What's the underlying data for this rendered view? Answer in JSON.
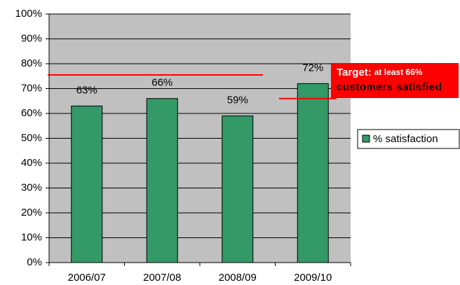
{
  "chart_data": {
    "type": "bar",
    "categories": [
      "2006/07",
      "2007/08",
      "2008/09",
      "2009/10"
    ],
    "series": [
      {
        "name": "% satisfaction",
        "color": "#339966",
        "values": [
          63,
          66,
          59,
          72
        ],
        "value_labels": [
          "63%",
          "66%",
          "59%",
          "72%"
        ]
      }
    ],
    "ylim": [
      0,
      100
    ],
    "yticks": [
      {
        "value": 0,
        "label": "0%"
      },
      {
        "value": 10,
        "label": "10%"
      },
      {
        "value": 20,
        "label": "20%"
      },
      {
        "value": 30,
        "label": "30%"
      },
      {
        "value": 40,
        "label": "40%"
      },
      {
        "value": 50,
        "label": "50%"
      },
      {
        "value": 60,
        "label": "60%"
      },
      {
        "value": 70,
        "label": "70%"
      },
      {
        "value": 80,
        "label": "80%"
      },
      {
        "value": 90,
        "label": "90%"
      },
      {
        "value": 100,
        "label": "100%"
      }
    ],
    "grid": true,
    "legend": "right",
    "reference_lines": [
      75.5,
      66
    ],
    "annotation": {
      "title": "Target:",
      "lines": [
        "at least 66%",
        "customers satisfied"
      ],
      "color": "#ff0000"
    }
  }
}
